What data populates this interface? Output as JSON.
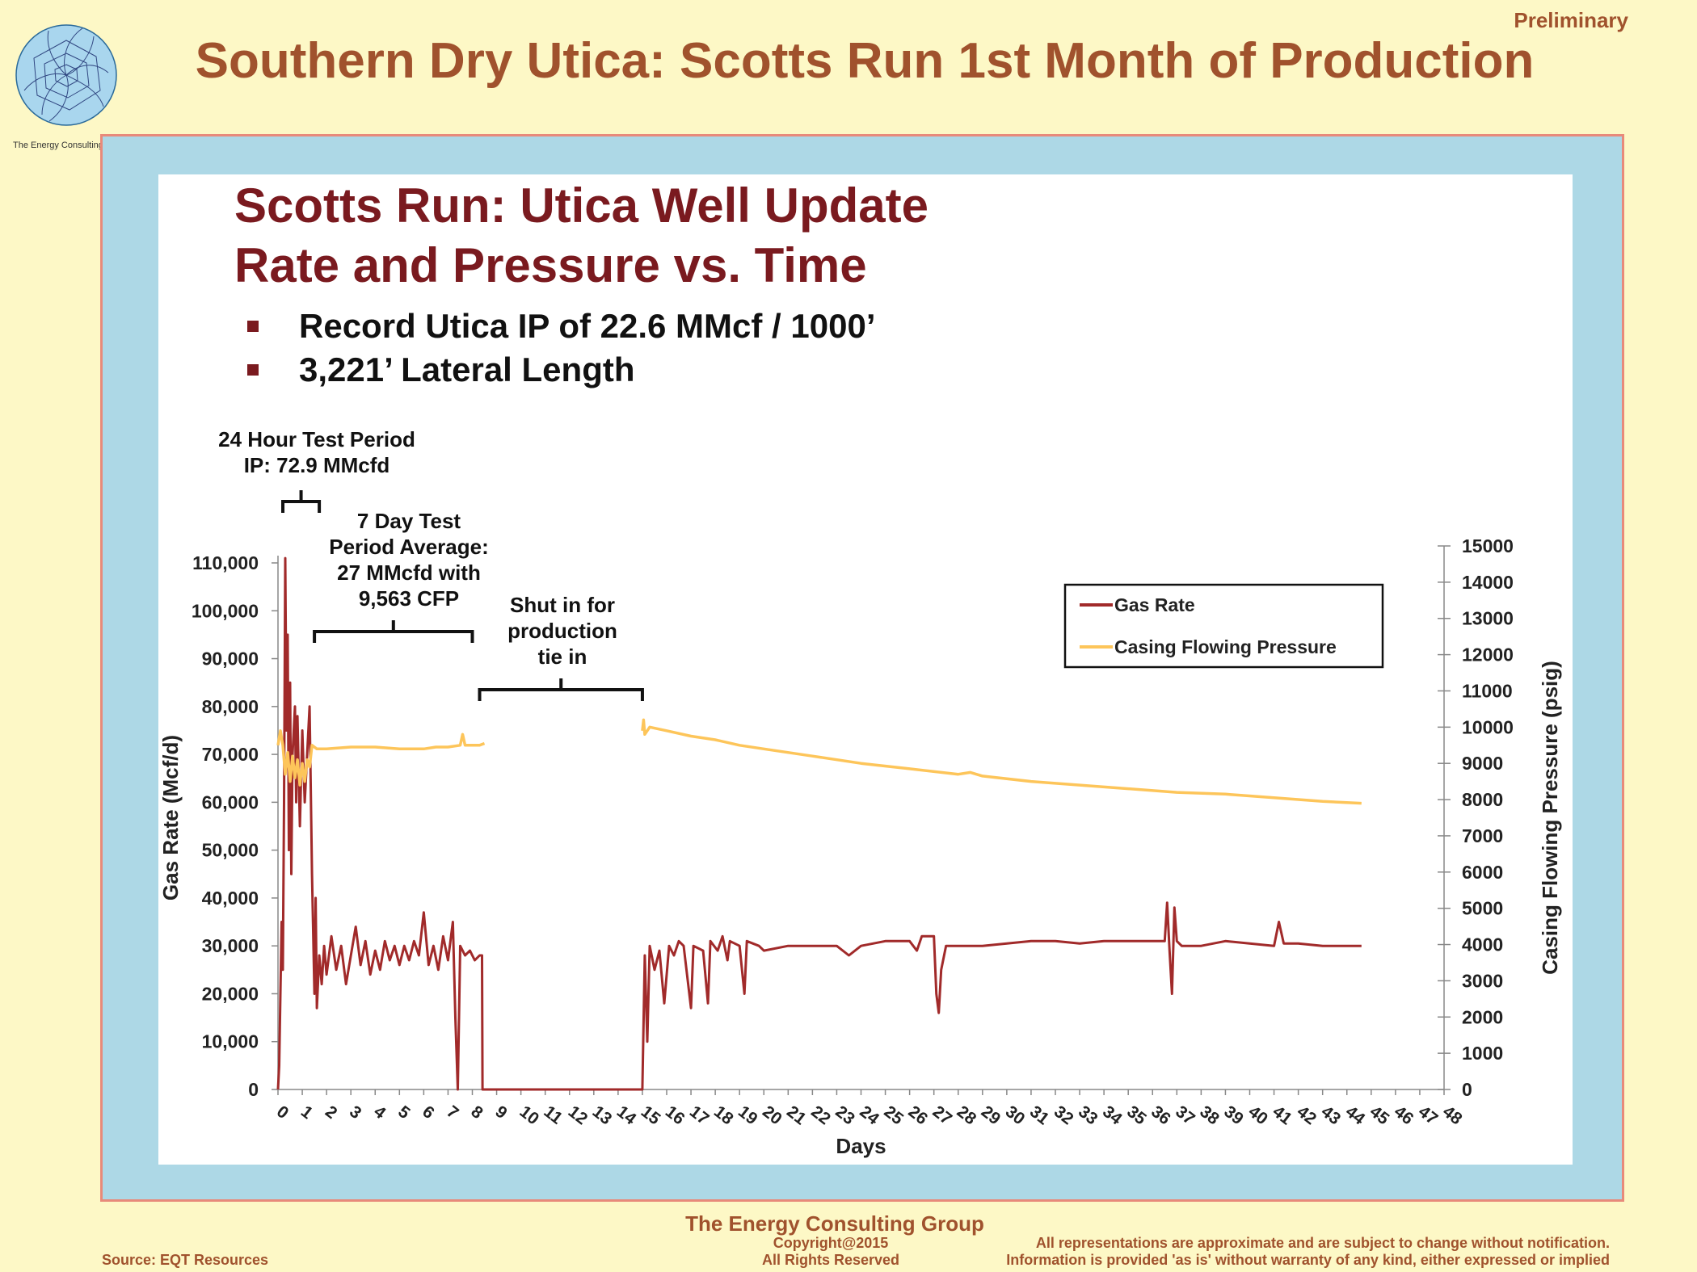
{
  "slide": {
    "title": "Southern Dry Utica: Scotts Run 1st Month of Production",
    "preliminary": "Preliminary",
    "logo_caption": "The Energy Consulting Group"
  },
  "footer": {
    "org": "The Energy Consulting Group",
    "copyright_line1": "Copyright@2015",
    "copyright_line2": "All Rights Reserved",
    "source": "Source: EQT Resources",
    "disclaimer_line1": "All representations are approximate and are subject to change without notification.",
    "disclaimer_line2": "Information is provided 'as is' without warranty of any kind, either expressed or implied"
  },
  "colors": {
    "title": "#a0522d",
    "heading": "#7a1a1f",
    "gas_rate": "#a12a2a",
    "pressure": "#fdc55a",
    "frame_bg": "#add8e6",
    "frame_border": "#e88a7a",
    "page_bg": "#fdf8c6"
  },
  "chart_data": {
    "type": "line",
    "title": "Scotts Run: Utica Well Update",
    "subtitle": "Rate and Pressure vs. Time",
    "bullets": [
      "Record Utica IP of 22.6 MMcf / 1000’",
      "3,221’ Lateral Length"
    ],
    "xlabel": "Days",
    "ylabel": "Gas Rate (Mcf/d)",
    "y2label": "Casing Flowing Pressure (psig)",
    "xlim": [
      0,
      48
    ],
    "ylim": [
      0,
      110000
    ],
    "y2lim": [
      0,
      15000
    ],
    "x_ticks": [
      "0",
      "1",
      "2",
      "3",
      "4",
      "5",
      "6",
      "7",
      "8",
      "9",
      "10",
      "11",
      "12",
      "13",
      "14",
      "15",
      "16",
      "17",
      "18",
      "19",
      "20",
      "21",
      "22",
      "23",
      "24",
      "25",
      "26",
      "27",
      "28",
      "29",
      "30",
      "31",
      "32",
      "33",
      "34",
      "35",
      "36",
      "37",
      "38",
      "39",
      "40",
      "41",
      "42",
      "43",
      "44",
      "45",
      "46",
      "47",
      "48"
    ],
    "y_ticks": [
      "0",
      "10,000",
      "20,000",
      "30,000",
      "40,000",
      "50,000",
      "60,000",
      "70,000",
      "80,000",
      "90,000",
      "100,000",
      "110,000"
    ],
    "y2_ticks": [
      "0",
      "1000",
      "2000",
      "3000",
      "4000",
      "5000",
      "6000",
      "7000",
      "8000",
      "9000",
      "10000",
      "11000",
      "12000",
      "13000",
      "14000",
      "15000"
    ],
    "legend_position": "top-right",
    "grid": false,
    "annotations": [
      {
        "lines": [
          "24 Hour Test Period",
          "IP: 72.9 MMcfd"
        ],
        "x_range": [
          0.2,
          1.7
        ]
      },
      {
        "lines": [
          "7 Day Test",
          "Period Average:",
          "27 MMcfd with",
          "9,563 CFP"
        ],
        "x_range": [
          1.5,
          8
        ]
      },
      {
        "lines": [
          "Shut in for",
          "production",
          "tie in"
        ],
        "x_range": [
          8.3,
          15
        ]
      }
    ],
    "series": [
      {
        "name": "Gas Rate",
        "axis": "left",
        "points": [
          [
            0,
            0
          ],
          [
            0.05,
            5000
          ],
          [
            0.1,
            20000
          ],
          [
            0.15,
            35000
          ],
          [
            0.2,
            25000
          ],
          [
            0.25,
            60000
          ],
          [
            0.3,
            111000
          ],
          [
            0.35,
            75000
          ],
          [
            0.4,
            95000
          ],
          [
            0.45,
            50000
          ],
          [
            0.5,
            85000
          ],
          [
            0.55,
            45000
          ],
          [
            0.6,
            70000
          ],
          [
            0.7,
            80000
          ],
          [
            0.75,
            60000
          ],
          [
            0.8,
            78000
          ],
          [
            0.9,
            55000
          ],
          [
            1.0,
            75000
          ],
          [
            1.1,
            60000
          ],
          [
            1.2,
            70000
          ],
          [
            1.3,
            80000
          ],
          [
            1.4,
            45000
          ],
          [
            1.5,
            20000
          ],
          [
            1.55,
            40000
          ],
          [
            1.6,
            17000
          ],
          [
            1.7,
            28000
          ],
          [
            1.8,
            22000
          ],
          [
            1.9,
            30000
          ],
          [
            2.0,
            24000
          ],
          [
            2.2,
            32000
          ],
          [
            2.4,
            25000
          ],
          [
            2.6,
            30000
          ],
          [
            2.8,
            22000
          ],
          [
            3.0,
            28000
          ],
          [
            3.2,
            34000
          ],
          [
            3.4,
            26000
          ],
          [
            3.6,
            31000
          ],
          [
            3.8,
            24000
          ],
          [
            4.0,
            29000
          ],
          [
            4.2,
            25000
          ],
          [
            4.4,
            31000
          ],
          [
            4.6,
            27000
          ],
          [
            4.8,
            30000
          ],
          [
            5.0,
            26000
          ],
          [
            5.2,
            30000
          ],
          [
            5.4,
            27000
          ],
          [
            5.6,
            31000
          ],
          [
            5.8,
            28000
          ],
          [
            6.0,
            37000
          ],
          [
            6.2,
            26000
          ],
          [
            6.4,
            30000
          ],
          [
            6.6,
            25000
          ],
          [
            6.8,
            32000
          ],
          [
            7.0,
            27000
          ],
          [
            7.2,
            35000
          ],
          [
            7.3,
            15000
          ],
          [
            7.4,
            0
          ],
          [
            7.5,
            30000
          ],
          [
            7.7,
            28000
          ],
          [
            7.9,
            29000
          ],
          [
            8.1,
            27000
          ],
          [
            8.3,
            28000
          ],
          [
            8.4,
            28000
          ],
          [
            8.42,
            0
          ],
          [
            15.0,
            0
          ],
          [
            15.1,
            28000
          ],
          [
            15.2,
            10000
          ],
          [
            15.3,
            30000
          ],
          [
            15.5,
            25000
          ],
          [
            15.7,
            29000
          ],
          [
            15.9,
            18000
          ],
          [
            16.1,
            30000
          ],
          [
            16.3,
            28000
          ],
          [
            16.5,
            31000
          ],
          [
            16.7,
            30000
          ],
          [
            17.0,
            17000
          ],
          [
            17.1,
            30000
          ],
          [
            17.5,
            29000
          ],
          [
            17.7,
            18000
          ],
          [
            17.8,
            31000
          ],
          [
            18.1,
            29000
          ],
          [
            18.3,
            32000
          ],
          [
            18.5,
            27000
          ],
          [
            18.6,
            31000
          ],
          [
            19.0,
            30000
          ],
          [
            19.2,
            20000
          ],
          [
            19.3,
            31000
          ],
          [
            19.8,
            30000
          ],
          [
            20.0,
            29000
          ],
          [
            21.0,
            30000
          ],
          [
            22.0,
            30000
          ],
          [
            23.0,
            30000
          ],
          [
            23.5,
            28000
          ],
          [
            24.0,
            30000
          ],
          [
            25.0,
            31000
          ],
          [
            26.0,
            31000
          ],
          [
            26.3,
            29000
          ],
          [
            26.5,
            32000
          ],
          [
            27.0,
            32000
          ],
          [
            27.1,
            20000
          ],
          [
            27.2,
            16000
          ],
          [
            27.3,
            25000
          ],
          [
            27.5,
            30000
          ],
          [
            28.0,
            30000
          ],
          [
            29.0,
            30000
          ],
          [
            30.0,
            30500
          ],
          [
            31.0,
            31000
          ],
          [
            32.0,
            31000
          ],
          [
            33.0,
            30500
          ],
          [
            34.0,
            31000
          ],
          [
            35.0,
            31000
          ],
          [
            36.0,
            31000
          ],
          [
            36.5,
            31000
          ],
          [
            36.6,
            39000
          ],
          [
            36.7,
            29000
          ],
          [
            36.8,
            20000
          ],
          [
            36.9,
            38000
          ],
          [
            37.0,
            31000
          ],
          [
            37.2,
            30000
          ],
          [
            38.0,
            30000
          ],
          [
            39.0,
            31000
          ],
          [
            40.0,
            30500
          ],
          [
            41.0,
            30000
          ],
          [
            41.2,
            35000
          ],
          [
            41.4,
            30500
          ],
          [
            42.0,
            30500
          ],
          [
            43.0,
            30000
          ],
          [
            44.6,
            30000
          ]
        ]
      },
      {
        "name": "Casing Flowing Pressure",
        "axis": "right",
        "points": [
          [
            0,
            9500
          ],
          [
            0.1,
            9900
          ],
          [
            0.2,
            9500
          ],
          [
            0.3,
            8700
          ],
          [
            0.4,
            9300
          ],
          [
            0.5,
            8500
          ],
          [
            0.6,
            9200
          ],
          [
            0.7,
            8600
          ],
          [
            0.8,
            9100
          ],
          [
            0.9,
            8400
          ],
          [
            1.0,
            9000
          ],
          [
            1.1,
            8500
          ],
          [
            1.2,
            9100
          ],
          [
            1.3,
            8900
          ],
          [
            1.4,
            9500
          ],
          [
            1.6,
            9400
          ],
          [
            2.0,
            9400
          ],
          [
            3.0,
            9450
          ],
          [
            4.0,
            9450
          ],
          [
            5.0,
            9400
          ],
          [
            6.0,
            9400
          ],
          [
            6.5,
            9450
          ],
          [
            7.0,
            9450
          ],
          [
            7.5,
            9500
          ],
          [
            7.6,
            9800
          ],
          [
            7.7,
            9500
          ],
          [
            8.0,
            9500
          ],
          [
            8.3,
            9500
          ],
          [
            8.5,
            9550
          ],
          [
            15.0,
            9900
          ],
          [
            15.05,
            10200
          ],
          [
            15.1,
            9800
          ],
          [
            15.3,
            10000
          ],
          [
            16.0,
            9900
          ],
          [
            17.0,
            9750
          ],
          [
            18.0,
            9650
          ],
          [
            19.0,
            9500
          ],
          [
            20.0,
            9400
          ],
          [
            22.0,
            9200
          ],
          [
            24.0,
            9000
          ],
          [
            26.0,
            8850
          ],
          [
            28.0,
            8700
          ],
          [
            28.5,
            8750
          ],
          [
            29.0,
            8650
          ],
          [
            31.0,
            8500
          ],
          [
            33.0,
            8400
          ],
          [
            35.0,
            8300
          ],
          [
            37.0,
            8200
          ],
          [
            39.0,
            8150
          ],
          [
            41.0,
            8050
          ],
          [
            43.0,
            7950
          ],
          [
            44.6,
            7900
          ]
        ]
      }
    ]
  }
}
